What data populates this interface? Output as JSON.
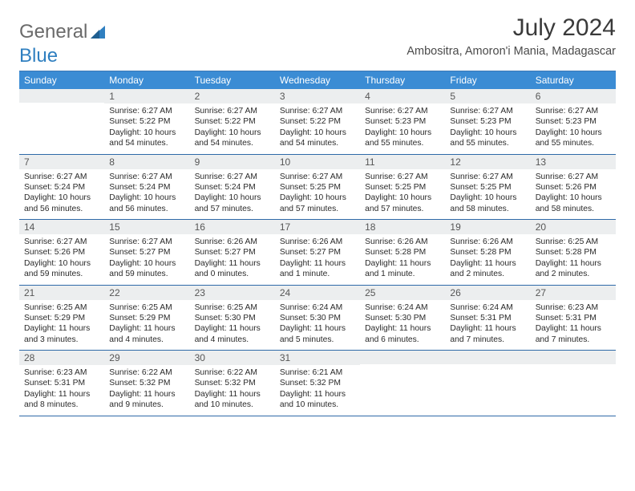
{
  "brand": {
    "general": "General",
    "blue": "Blue"
  },
  "title": "July 2024",
  "location": "Ambositra, Amoron'i Mania, Madagascar",
  "columns": [
    "Sunday",
    "Monday",
    "Tuesday",
    "Wednesday",
    "Thursday",
    "Friday",
    "Saturday"
  ],
  "colors": {
    "header_bg": "#3b8cd4",
    "header_text": "#ffffff",
    "row_separator": "#2f6aa8",
    "daynum_bg": "#eceeef",
    "logo_blue": "#2f7fc0",
    "logo_gray": "#6a6a6a",
    "title_color": "#3a3a3a"
  },
  "weeks": [
    [
      {
        "n": "",
        "sunrise": "",
        "sunset": "",
        "daylight": ""
      },
      {
        "n": "1",
        "sunrise": "Sunrise: 6:27 AM",
        "sunset": "Sunset: 5:22 PM",
        "daylight": "Daylight: 10 hours and 54 minutes."
      },
      {
        "n": "2",
        "sunrise": "Sunrise: 6:27 AM",
        "sunset": "Sunset: 5:22 PM",
        "daylight": "Daylight: 10 hours and 54 minutes."
      },
      {
        "n": "3",
        "sunrise": "Sunrise: 6:27 AM",
        "sunset": "Sunset: 5:22 PM",
        "daylight": "Daylight: 10 hours and 54 minutes."
      },
      {
        "n": "4",
        "sunrise": "Sunrise: 6:27 AM",
        "sunset": "Sunset: 5:23 PM",
        "daylight": "Daylight: 10 hours and 55 minutes."
      },
      {
        "n": "5",
        "sunrise": "Sunrise: 6:27 AM",
        "sunset": "Sunset: 5:23 PM",
        "daylight": "Daylight: 10 hours and 55 minutes."
      },
      {
        "n": "6",
        "sunrise": "Sunrise: 6:27 AM",
        "sunset": "Sunset: 5:23 PM",
        "daylight": "Daylight: 10 hours and 55 minutes."
      }
    ],
    [
      {
        "n": "7",
        "sunrise": "Sunrise: 6:27 AM",
        "sunset": "Sunset: 5:24 PM",
        "daylight": "Daylight: 10 hours and 56 minutes."
      },
      {
        "n": "8",
        "sunrise": "Sunrise: 6:27 AM",
        "sunset": "Sunset: 5:24 PM",
        "daylight": "Daylight: 10 hours and 56 minutes."
      },
      {
        "n": "9",
        "sunrise": "Sunrise: 6:27 AM",
        "sunset": "Sunset: 5:24 PM",
        "daylight": "Daylight: 10 hours and 57 minutes."
      },
      {
        "n": "10",
        "sunrise": "Sunrise: 6:27 AM",
        "sunset": "Sunset: 5:25 PM",
        "daylight": "Daylight: 10 hours and 57 minutes."
      },
      {
        "n": "11",
        "sunrise": "Sunrise: 6:27 AM",
        "sunset": "Sunset: 5:25 PM",
        "daylight": "Daylight: 10 hours and 57 minutes."
      },
      {
        "n": "12",
        "sunrise": "Sunrise: 6:27 AM",
        "sunset": "Sunset: 5:25 PM",
        "daylight": "Daylight: 10 hours and 58 minutes."
      },
      {
        "n": "13",
        "sunrise": "Sunrise: 6:27 AM",
        "sunset": "Sunset: 5:26 PM",
        "daylight": "Daylight: 10 hours and 58 minutes."
      }
    ],
    [
      {
        "n": "14",
        "sunrise": "Sunrise: 6:27 AM",
        "sunset": "Sunset: 5:26 PM",
        "daylight": "Daylight: 10 hours and 59 minutes."
      },
      {
        "n": "15",
        "sunrise": "Sunrise: 6:27 AM",
        "sunset": "Sunset: 5:27 PM",
        "daylight": "Daylight: 10 hours and 59 minutes."
      },
      {
        "n": "16",
        "sunrise": "Sunrise: 6:26 AM",
        "sunset": "Sunset: 5:27 PM",
        "daylight": "Daylight: 11 hours and 0 minutes."
      },
      {
        "n": "17",
        "sunrise": "Sunrise: 6:26 AM",
        "sunset": "Sunset: 5:27 PM",
        "daylight": "Daylight: 11 hours and 1 minute."
      },
      {
        "n": "18",
        "sunrise": "Sunrise: 6:26 AM",
        "sunset": "Sunset: 5:28 PM",
        "daylight": "Daylight: 11 hours and 1 minute."
      },
      {
        "n": "19",
        "sunrise": "Sunrise: 6:26 AM",
        "sunset": "Sunset: 5:28 PM",
        "daylight": "Daylight: 11 hours and 2 minutes."
      },
      {
        "n": "20",
        "sunrise": "Sunrise: 6:25 AM",
        "sunset": "Sunset: 5:28 PM",
        "daylight": "Daylight: 11 hours and 2 minutes."
      }
    ],
    [
      {
        "n": "21",
        "sunrise": "Sunrise: 6:25 AM",
        "sunset": "Sunset: 5:29 PM",
        "daylight": "Daylight: 11 hours and 3 minutes."
      },
      {
        "n": "22",
        "sunrise": "Sunrise: 6:25 AM",
        "sunset": "Sunset: 5:29 PM",
        "daylight": "Daylight: 11 hours and 4 minutes."
      },
      {
        "n": "23",
        "sunrise": "Sunrise: 6:25 AM",
        "sunset": "Sunset: 5:30 PM",
        "daylight": "Daylight: 11 hours and 4 minutes."
      },
      {
        "n": "24",
        "sunrise": "Sunrise: 6:24 AM",
        "sunset": "Sunset: 5:30 PM",
        "daylight": "Daylight: 11 hours and 5 minutes."
      },
      {
        "n": "25",
        "sunrise": "Sunrise: 6:24 AM",
        "sunset": "Sunset: 5:30 PM",
        "daylight": "Daylight: 11 hours and 6 minutes."
      },
      {
        "n": "26",
        "sunrise": "Sunrise: 6:24 AM",
        "sunset": "Sunset: 5:31 PM",
        "daylight": "Daylight: 11 hours and 7 minutes."
      },
      {
        "n": "27",
        "sunrise": "Sunrise: 6:23 AM",
        "sunset": "Sunset: 5:31 PM",
        "daylight": "Daylight: 11 hours and 7 minutes."
      }
    ],
    [
      {
        "n": "28",
        "sunrise": "Sunrise: 6:23 AM",
        "sunset": "Sunset: 5:31 PM",
        "daylight": "Daylight: 11 hours and 8 minutes."
      },
      {
        "n": "29",
        "sunrise": "Sunrise: 6:22 AM",
        "sunset": "Sunset: 5:32 PM",
        "daylight": "Daylight: 11 hours and 9 minutes."
      },
      {
        "n": "30",
        "sunrise": "Sunrise: 6:22 AM",
        "sunset": "Sunset: 5:32 PM",
        "daylight": "Daylight: 11 hours and 10 minutes."
      },
      {
        "n": "31",
        "sunrise": "Sunrise: 6:21 AM",
        "sunset": "Sunset: 5:32 PM",
        "daylight": "Daylight: 11 hours and 10 minutes."
      },
      {
        "n": "",
        "sunrise": "",
        "sunset": "",
        "daylight": ""
      },
      {
        "n": "",
        "sunrise": "",
        "sunset": "",
        "daylight": ""
      },
      {
        "n": "",
        "sunrise": "",
        "sunset": "",
        "daylight": ""
      }
    ]
  ]
}
